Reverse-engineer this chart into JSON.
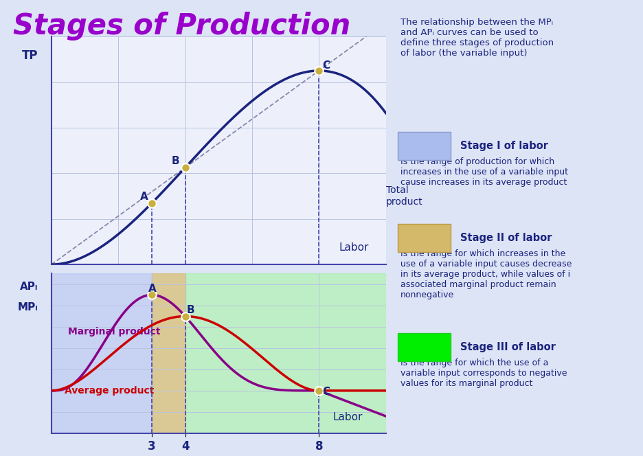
{
  "title": "Stages of Production",
  "title_color": "#9900cc",
  "title_fontsize": 30,
  "bg_color": "#dde4f5",
  "grid_color": "#b8c4e0",
  "chart_bg": "#edf0fb",
  "stage1_color": "#aabbee",
  "stage2_color": "#d4b96a",
  "stage3_color": "#90ee90",
  "stage1_alpha": 0.55,
  "stage2_alpha": 0.7,
  "stage3_alpha": 0.5,
  "tp_color": "#1a237e",
  "mp_color": "#880088",
  "ap_color": "#cc0000",
  "dashed_color": "#8888aa",
  "point_color": "#c8b040",
  "text_color": "#1a237e",
  "stage_bold_color": "#1a237e",
  "text_right": {
    "intro": "The relationship between the MPₗ\nand APₗ curves can be used to\ndefine three stages of production\nof labor (the variable input)",
    "stage1_label": "Stage I of labor",
    "stage1_desc": "Is the range of production for which\nincreases in the use of a variable input\ncause increases in its average product",
    "stage2_label": "Stage II of labor",
    "stage2_desc": "Is the range for which increases in the\nuse of a variable input causes decrease\nin its average product, while values of i\nassociated marginal product remain\nnonnegative",
    "stage3_label": "Stage III of labor",
    "stage3_desc": "Is the range for which the use of a\nvariable input corresponds to negative\nvalues for its marginal product"
  }
}
